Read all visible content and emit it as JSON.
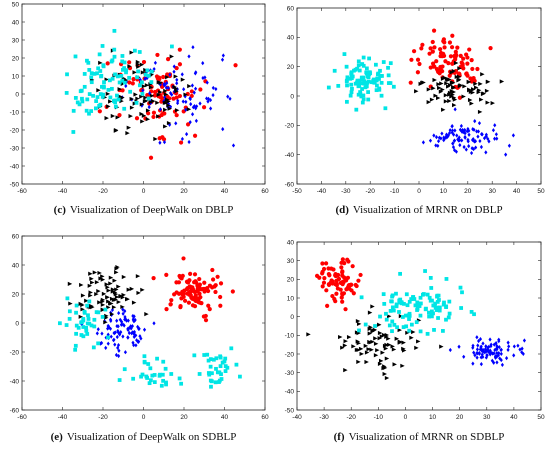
{
  "chart_data": [
    {
      "type": "scatter",
      "caption_letter": "(c)",
      "caption_text": "Visualization of DeepWalk on DBLP",
      "xlim": [
        -60,
        60
      ],
      "ylim": [
        -50,
        50
      ],
      "x_ticks": [
        -60,
        -40,
        -20,
        0,
        20,
        40,
        60
      ],
      "y_ticks": [
        -50,
        -40,
        -30,
        -20,
        -10,
        0,
        10,
        20,
        30,
        40,
        50
      ],
      "grid": false,
      "series": [
        {
          "color": "#ff0000",
          "marker": "circle",
          "clusters": [
            {
              "cx": 5,
              "cy": 0,
              "sx": 22,
              "sy": 20,
              "n": 95
            }
          ]
        },
        {
          "color": "#0000ff",
          "marker": "diamond",
          "clusters": [
            {
              "cx": 15,
              "cy": 0,
              "sx": 20,
              "sy": 20,
              "n": 95
            }
          ]
        },
        {
          "color": "#000000",
          "marker": "triangle-right",
          "clusters": [
            {
              "cx": 0,
              "cy": 0,
              "sx": 20,
              "sy": 18,
              "n": 95
            }
          ]
        },
        {
          "color": "#00e5e5",
          "marker": "square",
          "clusters": [
            {
              "cx": -15,
              "cy": 5,
              "sx": 20,
              "sy": 18,
              "n": 95
            }
          ]
        }
      ]
    },
    {
      "type": "scatter",
      "caption_letter": "(d)",
      "caption_text": "Visualization of MRNR on DBLP",
      "xlim": [
        -50,
        50
      ],
      "ylim": [
        -60,
        60
      ],
      "x_ticks": [
        -50,
        -40,
        -30,
        -20,
        -10,
        0,
        10,
        20,
        30,
        40,
        50
      ],
      "y_ticks": [
        -60,
        -40,
        -20,
        0,
        20,
        40,
        60
      ],
      "grid": false,
      "series": [
        {
          "color": "#ff0000",
          "marker": "circle",
          "clusters": [
            {
              "cx": 12,
              "cy": 22,
              "sx": 11,
              "sy": 14,
              "n": 90
            }
          ]
        },
        {
          "color": "#0000ff",
          "marker": "diamond",
          "clusters": [
            {
              "cx": 18,
              "cy": -28,
              "sx": 12,
              "sy": 9,
              "n": 95
            }
          ]
        },
        {
          "color": "#000000",
          "marker": "triangle-right",
          "clusters": [
            {
              "cx": 15,
              "cy": 5,
              "sx": 13,
              "sy": 11,
              "n": 80
            }
          ]
        },
        {
          "color": "#00e5e5",
          "marker": "square",
          "clusters": [
            {
              "cx": -22,
              "cy": 10,
              "sx": 10,
              "sy": 12,
              "n": 100
            }
          ]
        }
      ]
    },
    {
      "type": "scatter",
      "caption_letter": "(e)",
      "caption_text": "Visualization of DeepWalk on SDBLP",
      "xlim": [
        -60,
        60
      ],
      "ylim": [
        -60,
        60
      ],
      "x_ticks": [
        -60,
        -40,
        -20,
        0,
        20,
        40,
        60
      ],
      "y_ticks": [
        -60,
        -40,
        -20,
        0,
        20,
        40,
        60
      ],
      "grid": false,
      "series": [
        {
          "color": "#ff0000",
          "marker": "circle",
          "clusters": [
            {
              "cx": 25,
              "cy": 20,
              "sx": 11,
              "sy": 14,
              "n": 100
            }
          ]
        },
        {
          "color": "#0000ff",
          "marker": "diamond",
          "clusters": [
            {
              "cx": -10,
              "cy": -5,
              "sx": 12,
              "sy": 12,
              "n": 95
            }
          ]
        },
        {
          "color": "#000000",
          "marker": "triangle-right",
          "clusters": [
            {
              "cx": -20,
              "cy": 20,
              "sx": 13,
              "sy": 15,
              "n": 80
            }
          ]
        },
        {
          "color": "#00e5e5",
          "marker": "square",
          "clusters": [
            {
              "cx": -30,
              "cy": 0,
              "sx": 9,
              "sy": 15,
              "n": 40
            },
            {
              "cx": 5,
              "cy": -35,
              "sx": 9,
              "sy": 8,
              "n": 30
            },
            {
              "cx": 35,
              "cy": -30,
              "sx": 7,
              "sy": 10,
              "n": 35
            }
          ]
        }
      ]
    },
    {
      "type": "scatter",
      "caption_letter": "(f)",
      "caption_text": "Visualization of MRNR on SDBLP",
      "xlim": [
        -40,
        50
      ],
      "ylim": [
        -50,
        40
      ],
      "x_ticks": [
        -40,
        -30,
        -20,
        -10,
        0,
        10,
        20,
        30,
        40,
        50
      ],
      "y_ticks": [
        -50,
        -40,
        -30,
        -20,
        -10,
        0,
        10,
        20,
        30,
        40
      ],
      "grid": false,
      "series": [
        {
          "color": "#ff0000",
          "marker": "circle",
          "clusters": [
            {
              "cx": -25,
              "cy": 20,
              "sx": 6,
              "sy": 9,
              "n": 80
            }
          ]
        },
        {
          "color": "#0000ff",
          "marker": "diamond",
          "clusters": [
            {
              "cx": 32,
              "cy": -18,
              "sx": 8,
              "sy": 6,
              "n": 90
            }
          ]
        },
        {
          "color": "#000000",
          "marker": "triangle-right",
          "clusters": [
            {
              "cx": -10,
              "cy": -15,
              "sx": 12,
              "sy": 12,
              "n": 80
            }
          ]
        },
        {
          "color": "#00e5e5",
          "marker": "square",
          "clusters": [
            {
              "cx": 5,
              "cy": 5,
              "sx": 13,
              "sy": 13,
              "n": 110
            }
          ]
        }
      ]
    }
  ]
}
